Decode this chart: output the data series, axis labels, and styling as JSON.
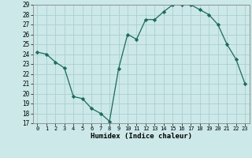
{
  "x": [
    0,
    1,
    2,
    3,
    4,
    5,
    6,
    7,
    8,
    9,
    10,
    11,
    12,
    13,
    14,
    15,
    16,
    17,
    18,
    19,
    20,
    21,
    22,
    23
  ],
  "y": [
    24.2,
    24.0,
    23.2,
    22.6,
    19.7,
    19.5,
    18.5,
    18.0,
    17.2,
    22.5,
    26.0,
    25.5,
    27.5,
    27.5,
    28.3,
    29.0,
    29.0,
    29.0,
    28.5,
    28.0,
    27.0,
    25.0,
    23.5,
    21.0
  ],
  "ylim": [
    17,
    29
  ],
  "yticks": [
    17,
    18,
    19,
    20,
    21,
    22,
    23,
    24,
    25,
    26,
    27,
    28,
    29
  ],
  "xticks": [
    0,
    1,
    2,
    3,
    4,
    5,
    6,
    7,
    8,
    9,
    10,
    11,
    12,
    13,
    14,
    15,
    16,
    17,
    18,
    19,
    20,
    21,
    22,
    23
  ],
  "xlabel": "Humidex (Indice chaleur)",
  "line_color": "#1a6b5a",
  "marker": "D",
  "marker_size": 2.2,
  "bg_color": "#cce8e8",
  "grid_color": "#aacfcf"
}
